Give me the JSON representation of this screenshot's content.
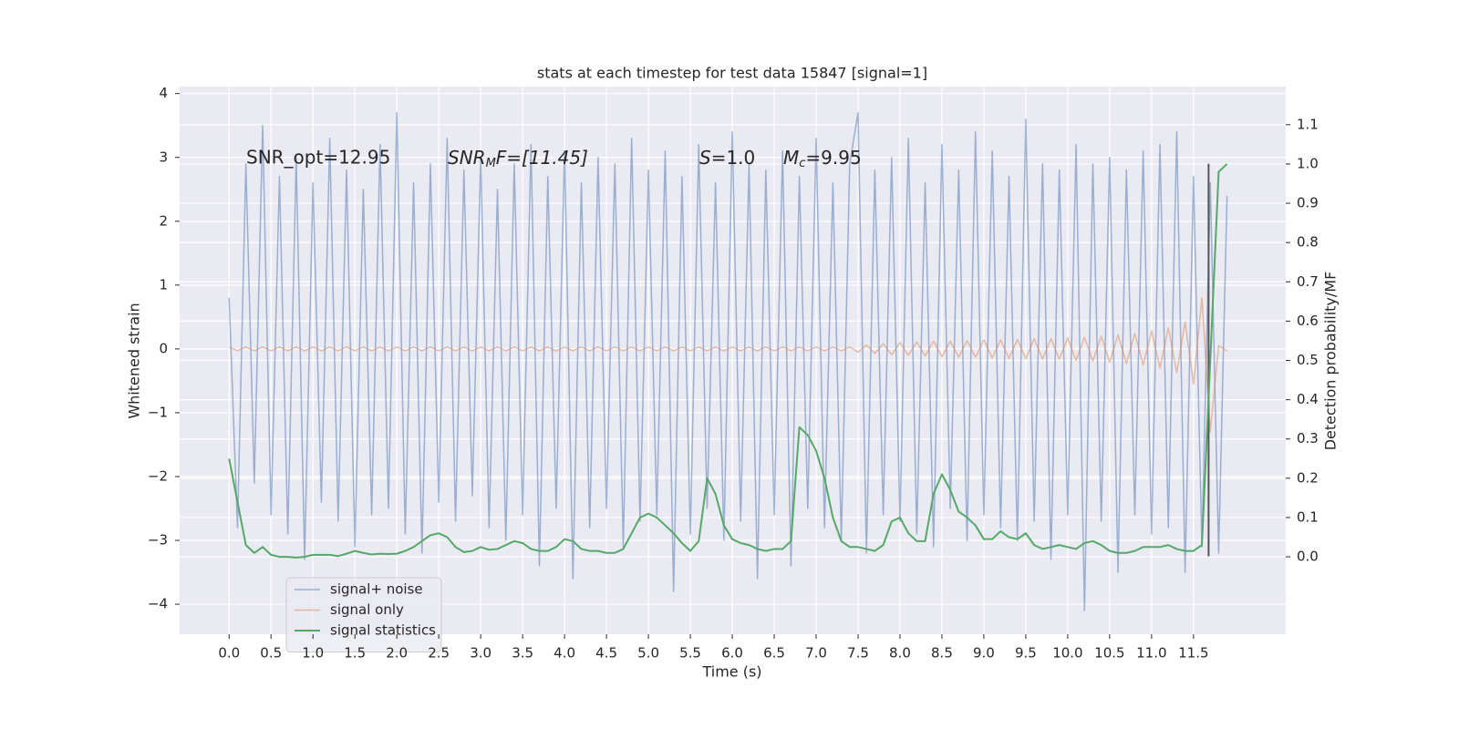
{
  "chart_data": {
    "type": "line",
    "title": "stats at each timestep for test data 15847 [signal=1]",
    "xlabel": "Time (s)",
    "ylabel": "Whitened strain",
    "y2label": "Detection probability/MF",
    "grid": true,
    "legend": "lower left",
    "xlim": [
      -0.59,
      12.6
    ],
    "ylim": [
      -4.47,
      4.11
    ],
    "y2lim": [
      -0.197,
      1.197
    ],
    "xticks": [
      {
        "value": 0,
        "label": "0.0"
      },
      0.5,
      {
        "value": 1,
        "label": "1.0"
      },
      1.5,
      {
        "value": 2,
        "label": "2.0"
      },
      2.5,
      {
        "value": 3,
        "label": "3.0"
      },
      3.5,
      {
        "value": 4,
        "label": "4.0"
      },
      4.5,
      {
        "value": 5,
        "label": "5.0"
      },
      5.5,
      {
        "value": 6,
        "label": "6.0"
      },
      6.5,
      {
        "value": 7,
        "label": "7.0"
      },
      7.5,
      {
        "value": 8,
        "label": "8.0"
      },
      8.5,
      {
        "value": 9,
        "label": "9.0"
      },
      9.5,
      {
        "value": 10,
        "label": "10.0"
      },
      10.5,
      {
        "value": 11,
        "label": "11.0"
      },
      11.5
    ],
    "yticks": [
      {
        "value": -4,
        "label": "−4"
      },
      {
        "value": -3,
        "label": "−3"
      },
      {
        "value": -2,
        "label": "−2"
      },
      {
        "value": -1,
        "label": "−1"
      },
      0,
      1,
      2,
      3,
      4
    ],
    "y2ticks": [
      {
        "value": 0,
        "label": "0.0"
      },
      0.1,
      0.2,
      0.3,
      0.4,
      0.5,
      0.6,
      0.7,
      0.8,
      0.9,
      {
        "value": 1,
        "label": "1.0"
      },
      1.1
    ],
    "annotations": [
      "SNR_opt=12.95",
      [
        "SNR",
        "M",
        "F=[11.45]"
      ],
      [
        "S",
        "=1.0"
      ],
      [
        "M",
        "c",
        "=9.95"
      ]
    ],
    "marker": {
      "x": 11.68,
      "y": [
        -3.25,
        2.9
      ],
      "color": "#555555"
    },
    "x": [
      0,
      0.1,
      0.2,
      0.3,
      0.4,
      0.5,
      0.6,
      0.7,
      0.8,
      0.9,
      1,
      1.1,
      1.2,
      1.3,
      1.4,
      1.5,
      1.6,
      1.7,
      1.8,
      1.9,
      2,
      2.1,
      2.2,
      2.3,
      2.4,
      2.5,
      2.6,
      2.7,
      2.8,
      2.9,
      3,
      3.1,
      3.2,
      3.3,
      3.4,
      3.5,
      3.6,
      3.7,
      3.8,
      3.9,
      4,
      4.1,
      4.2,
      4.3,
      4.4,
      4.5,
      4.6,
      4.7,
      4.8,
      4.9,
      5,
      5.1,
      5.2,
      5.3,
      5.4,
      5.5,
      5.6,
      5.7,
      5.8,
      5.9,
      6,
      6.1,
      6.2,
      6.3,
      6.4,
      6.5,
      6.6,
      6.7,
      6.8,
      6.9,
      7,
      7.1,
      7.2,
      7.3,
      7.4,
      7.5,
      7.6,
      7.7,
      7.8,
      7.9,
      8,
      8.1,
      8.2,
      8.3,
      8.4,
      8.5,
      8.6,
      8.7,
      8.8,
      8.9,
      9,
      9.1,
      9.2,
      9.3,
      9.4,
      9.5,
      9.6,
      9.7,
      9.8,
      9.9,
      10,
      10.1,
      10.2,
      10.3,
      10.4,
      10.5,
      10.6,
      10.7,
      10.8,
      10.9,
      11,
      11.1,
      11.2,
      11.3,
      11.4,
      11.5,
      11.6,
      11.7,
      11.8,
      11.9
    ],
    "series": [
      {
        "name": "signal+ noise",
        "color": "#4c72b0",
        "values": [
          0.8,
          -2.8,
          2.9,
          -2.1,
          3.5,
          -2.6,
          2.7,
          -2.9,
          3.0,
          -3.3,
          2.6,
          -2.4,
          3.3,
          -2.7,
          2.8,
          -3.1,
          2.5,
          -2.6,
          3.2,
          -2.5,
          3.7,
          -2.9,
          2.6,
          -3.2,
          2.9,
          -2.4,
          3.3,
          -2.7,
          2.8,
          -2.3,
          3.0,
          -2.8,
          2.5,
          -3.0,
          2.9,
          -2.6,
          3.2,
          -3.4,
          2.7,
          -2.5,
          3.1,
          -3.6,
          2.6,
          -2.8,
          3.0,
          -2.5,
          2.9,
          -3.1,
          3.3,
          -2.7,
          2.8,
          -2.6,
          3.1,
          -3.8,
          2.7,
          -2.9,
          3.2,
          -2.5,
          2.6,
          -3.0,
          3.4,
          -2.7,
          2.9,
          -3.6,
          2.8,
          -2.6,
          3.1,
          -3.4,
          2.7,
          -2.5,
          3.3,
          -2.8,
          2.6,
          -3.0,
          2.9,
          3.7,
          -3.2,
          2.8,
          -2.6,
          3.0,
          -2.7,
          3.3,
          -2.9,
          2.6,
          -3.1,
          3.2,
          -2.5,
          2.8,
          -3.0,
          3.4,
          -2.6,
          3.1,
          -2.8,
          2.7,
          -3.0,
          3.6,
          -2.7,
          2.9,
          -3.3,
          2.8,
          -2.6,
          3.2,
          -4.1,
          2.9,
          -2.7,
          3.0,
          -3.5,
          2.8,
          -2.6,
          3.1,
          -2.9,
          3.2,
          -2.8,
          3.4,
          -3.5,
          2.7,
          -3.1,
          2.6,
          -3.2,
          2.4
        ]
      },
      {
        "name": "signal only",
        "color": "#dd8452",
        "values": [
          0.03,
          -0.03,
          0.03,
          -0.03,
          0.03,
          -0.03,
          0.03,
          -0.03,
          0.03,
          -0.03,
          0.03,
          -0.03,
          0.03,
          -0.03,
          0.03,
          -0.03,
          0.03,
          -0.03,
          0.03,
          -0.03,
          0.03,
          -0.03,
          0.03,
          -0.03,
          0.03,
          -0.03,
          0.03,
          -0.03,
          0.03,
          -0.03,
          0.03,
          -0.03,
          0.03,
          -0.03,
          0.03,
          -0.03,
          0.03,
          -0.03,
          0.03,
          -0.03,
          0.03,
          -0.03,
          0.03,
          -0.03,
          0.03,
          -0.03,
          0.03,
          -0.03,
          0.03,
          -0.03,
          0.03,
          -0.03,
          0.03,
          -0.03,
          0.03,
          -0.03,
          0.03,
          -0.03,
          0.03,
          -0.03,
          0.03,
          -0.03,
          0.03,
          -0.03,
          0.03,
          -0.03,
          0.03,
          -0.03,
          0.03,
          -0.03,
          0.03,
          -0.03,
          0.03,
          -0.03,
          0.03,
          -0.05,
          0.06,
          -0.07,
          0.08,
          -0.09,
          0.1,
          -0.1,
          0.11,
          -0.11,
          0.12,
          -0.12,
          0.12,
          -0.13,
          0.13,
          -0.13,
          0.14,
          -0.14,
          0.14,
          -0.15,
          0.15,
          -0.15,
          0.16,
          -0.16,
          0.16,
          -0.16,
          0.17,
          -0.18,
          0.18,
          -0.19,
          0.2,
          -0.21,
          0.22,
          -0.23,
          0.24,
          -0.25,
          0.28,
          -0.3,
          0.33,
          -0.37,
          0.42,
          -0.55,
          0.8,
          -1.3,
          0.05,
          -0.03
        ]
      },
      {
        "name": "signal statistics",
        "color": "#55a868",
        "axis": "y2",
        "values": [
          0.25,
          0.14,
          0.03,
          0.01,
          0.025,
          0.005,
          0.0,
          0.0,
          -0.002,
          0.0,
          0.005,
          0.005,
          0.005,
          0.002,
          0.008,
          0.015,
          0.01,
          0.006,
          0.008,
          0.007,
          0.008,
          0.015,
          0.025,
          0.04,
          0.055,
          0.06,
          0.05,
          0.025,
          0.012,
          0.015,
          0.025,
          0.018,
          0.02,
          0.03,
          0.04,
          0.035,
          0.02,
          0.015,
          0.015,
          0.025,
          0.045,
          0.04,
          0.02,
          0.015,
          0.015,
          0.01,
          0.01,
          0.02,
          0.06,
          0.1,
          0.11,
          0.1,
          0.08,
          0.06,
          0.035,
          0.015,
          0.04,
          0.2,
          0.16,
          0.08,
          0.045,
          0.035,
          0.03,
          0.02,
          0.015,
          0.02,
          0.02,
          0.04,
          0.33,
          0.31,
          0.27,
          0.2,
          0.1,
          0.04,
          0.025,
          0.025,
          0.02,
          0.015,
          0.03,
          0.09,
          0.1,
          0.06,
          0.04,
          0.04,
          0.16,
          0.21,
          0.17,
          0.115,
          0.1,
          0.08,
          0.045,
          0.045,
          0.065,
          0.05,
          0.045,
          0.06,
          0.03,
          0.02,
          0.025,
          0.03,
          0.025,
          0.02,
          0.035,
          0.04,
          0.03,
          0.015,
          0.01,
          0.01,
          0.015,
          0.025,
          0.025,
          0.025,
          0.03,
          0.02,
          0.015,
          0.015,
          0.03,
          0.5,
          0.98,
          1.0
        ]
      }
    ]
  }
}
